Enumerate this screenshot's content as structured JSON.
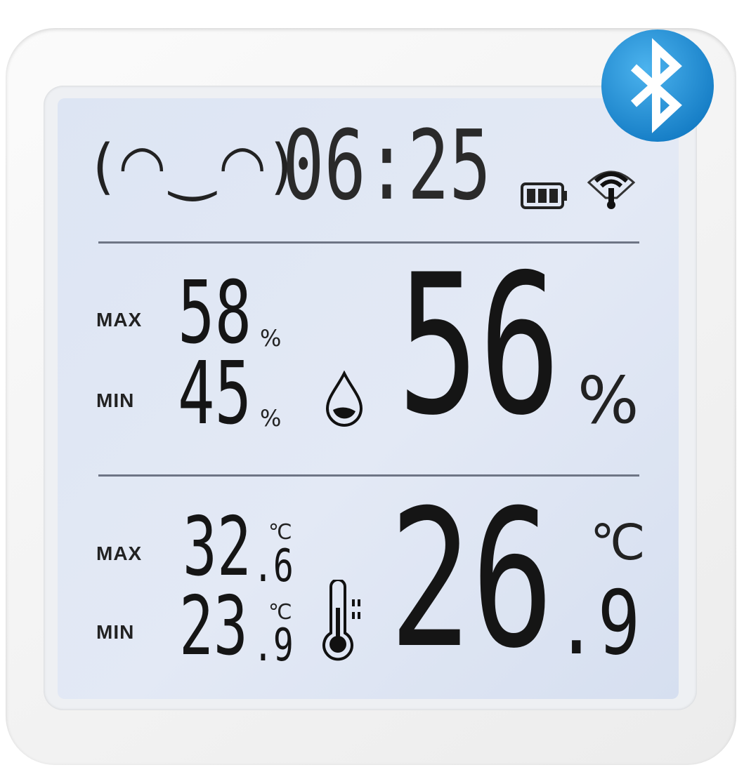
{
  "display": {
    "face": "(◠‿◠)",
    "time": "06:25",
    "humidity": {
      "max_label": "MAX",
      "max_value": "58",
      "min_label": "MIN",
      "min_value": "45",
      "unit_small": "%",
      "current": "56",
      "unit": "%"
    },
    "temperature": {
      "max_label": "MAX",
      "max_int": "32",
      "max_dec": ".6",
      "min_label": "MIN",
      "min_int": "23",
      "min_dec": ".9",
      "unit_small": "℃",
      "current_int": "26",
      "current_dec": ".9",
      "unit": "℃"
    }
  },
  "icons": [
    "bluetooth-icon",
    "battery-icon",
    "wifi-signal-icon",
    "water-drop-icon",
    "thermometer-icon",
    "smiley-face-icon"
  ],
  "colors": {
    "bluetooth": "#1e8fd6",
    "lcd_background": "#dfe6f3",
    "segment": "#151515"
  }
}
